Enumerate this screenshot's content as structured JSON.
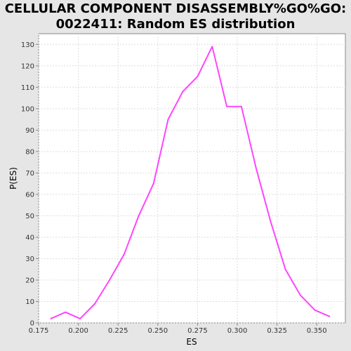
{
  "chart_data": {
    "type": "line",
    "title_line1": "CELLULAR COMPONENT DISASSEMBLY%GO%GO:",
    "title_line2": "0022411: Random ES distribution",
    "xlabel": "ES",
    "ylabel": "P(ES)",
    "xlim": [
      0.175,
      0.368
    ],
    "ylim": [
      0,
      135
    ],
    "x_ticks": [
      "0.175",
      "0.200",
      "0.225",
      "0.250",
      "0.275",
      "0.300",
      "0.325",
      "0.350"
    ],
    "y_ticks": [
      "0",
      "10",
      "20",
      "30",
      "40",
      "50",
      "60",
      "70",
      "80",
      "90",
      "100",
      "110",
      "120",
      "130"
    ],
    "grid": true,
    "line_color": "#ff44ff",
    "series": [
      {
        "x": [
          0.1827,
          0.1919,
          0.2011,
          0.2104,
          0.2196,
          0.2288,
          0.238,
          0.2473,
          0.2565,
          0.2657,
          0.275,
          0.2842,
          0.2934,
          0.3026,
          0.3119,
          0.3211,
          0.3303,
          0.3396,
          0.3488,
          0.358
        ],
        "y": [
          2,
          5,
          2,
          9,
          20,
          32,
          50,
          65,
          95,
          108,
          115,
          129,
          101,
          101,
          72,
          47,
          25,
          13,
          6,
          3
        ]
      }
    ]
  }
}
